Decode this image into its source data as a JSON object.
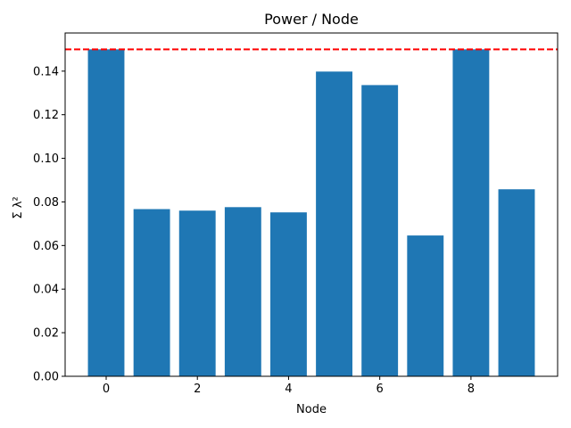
{
  "chart_data": {
    "type": "bar",
    "title": "Power / Node",
    "xlabel": "Node",
    "ylabel": "Σ λ²",
    "categories": [
      0,
      1,
      2,
      3,
      4,
      5,
      6,
      7,
      8,
      9
    ],
    "values": [
      0.15,
      0.0767,
      0.076,
      0.0776,
      0.0752,
      0.1398,
      0.1336,
      0.0646,
      0.15,
      0.0858
    ],
    "bar_color": "#1f77b4",
    "xlim": [
      -0.9,
      9.9
    ],
    "ylim": [
      0,
      0.1575
    ],
    "xticks": [
      0,
      2,
      4,
      6,
      8
    ],
    "yticks": [
      0.0,
      0.02,
      0.04,
      0.06,
      0.08,
      0.1,
      0.12,
      0.14
    ],
    "ytick_labels": [
      "0.00",
      "0.02",
      "0.04",
      "0.06",
      "0.08",
      "0.10",
      "0.12",
      "0.14"
    ],
    "threshold": {
      "y": 0.15,
      "color": "#ff0000",
      "style": "dashed"
    },
    "grid": false,
    "legend": "none"
  }
}
